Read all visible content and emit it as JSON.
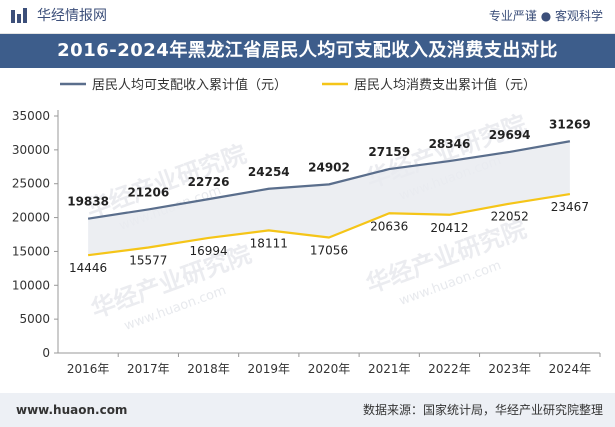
{
  "header": {
    "site_name": "华经情报网",
    "slogan": "专业严谨 ● 客观科学",
    "logo_icon": "bar-chart-logo-icon"
  },
  "title": "2016-2024年黑龙江省居民人均可支配收入及消费支出对比",
  "footer": {
    "url": "www.huaon.com",
    "source": "数据来源：国家统计局，华经产业研究院整理"
  },
  "watermark": {
    "text": "华经产业研究院",
    "url": "www.huaon.com"
  },
  "chart_data": {
    "type": "line",
    "categories": [
      "2016年",
      "2017年",
      "2018年",
      "2019年",
      "2020年",
      "2021年",
      "2022年",
      "2023年",
      "2024年"
    ],
    "series": [
      {
        "name": "居民人均可支配收入累计值（元）",
        "color": "#5a6e8c",
        "values": [
          19838,
          21206,
          22726,
          24254,
          24902,
          27159,
          28346,
          29694,
          31269
        ]
      },
      {
        "name": "居民人均消费支出累计值（元）",
        "color": "#f5c518",
        "values": [
          14446,
          15577,
          16994,
          18111,
          17056,
          20636,
          20412,
          22052,
          23467
        ]
      }
    ],
    "ylim": [
      0,
      35000
    ],
    "yticks": [
      0,
      5000,
      10000,
      15000,
      20000,
      25000,
      30000,
      35000
    ],
    "area_between_series_color": "#e9ebf0",
    "legend_position": "top",
    "grid": false
  }
}
